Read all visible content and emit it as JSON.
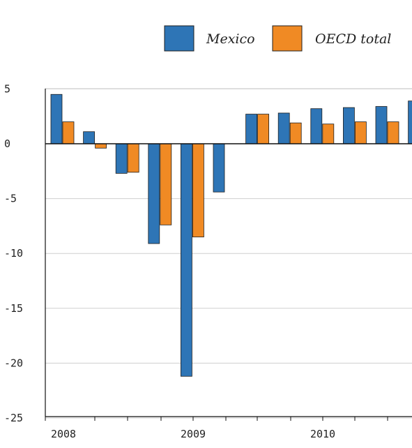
{
  "chart_data": {
    "type": "bar",
    "x_ticks": [
      "2008",
      "2009",
      "2010"
    ],
    "y_ticks": [
      5,
      0,
      -5,
      -10,
      -15,
      -20,
      -25
    ],
    "ylim": [
      -25,
      5
    ],
    "grid": true,
    "legend_placement": "top-right",
    "series": [
      {
        "name": "Mexico",
        "color": "#2e75b6",
        "values": [
          4.5,
          1.1,
          -2.7,
          -9.1,
          -21.2,
          -4.4,
          2.7,
          2.8,
          3.2,
          3.3,
          3.4,
          3.9
        ]
      },
      {
        "name": "OECD total",
        "color": "#f08a24",
        "values": [
          2.0,
          -0.4,
          -2.6,
          -7.4,
          -8.5,
          null,
          2.7,
          1.9,
          1.8,
          2.0,
          2.0,
          null
        ]
      }
    ],
    "colors": {
      "axis": "#111111",
      "grid": "#cfcfcf",
      "bar_outline": "#1f1f1f"
    }
  }
}
